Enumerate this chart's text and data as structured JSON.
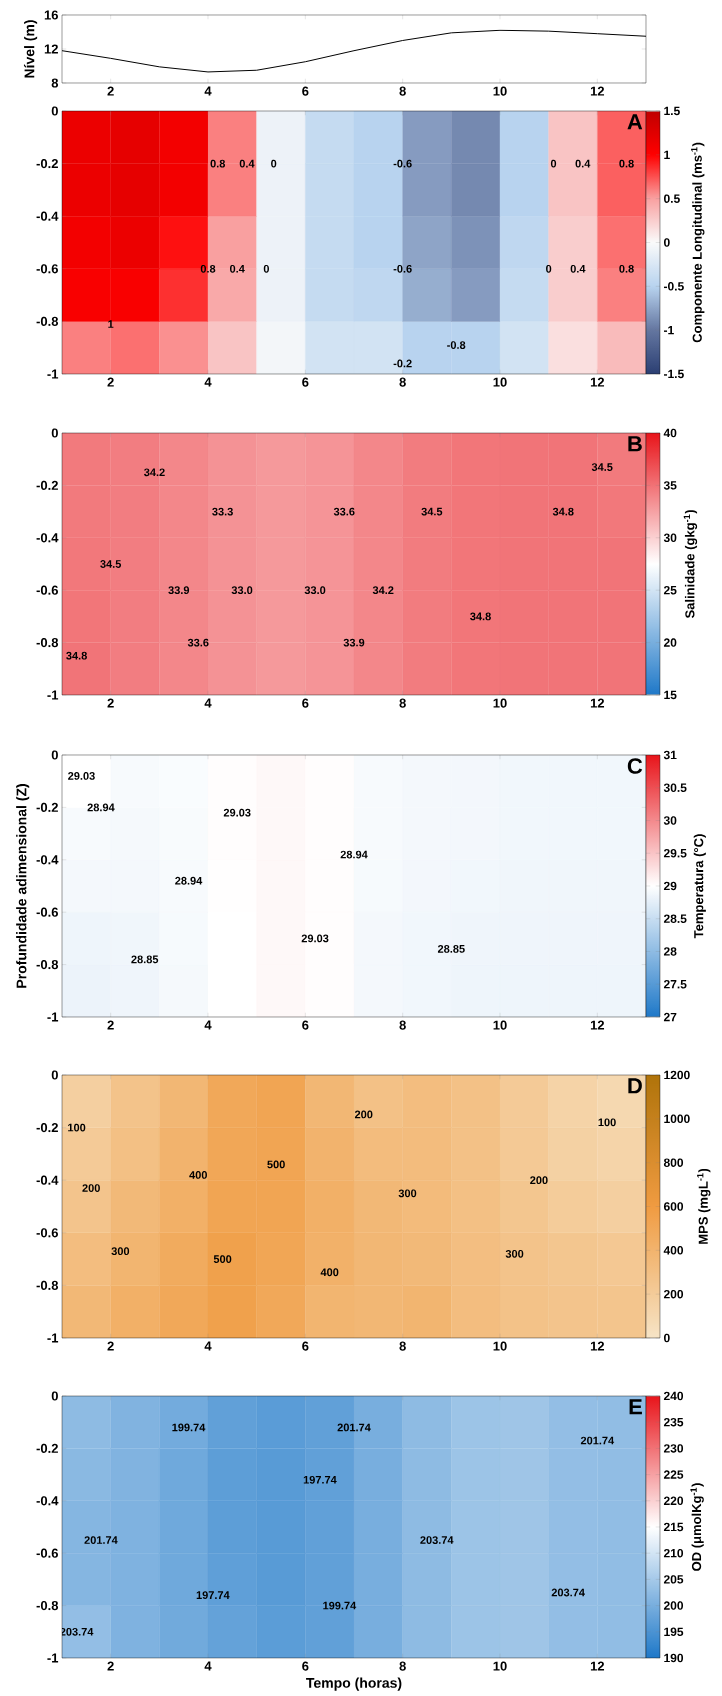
{
  "chart_data": [
    {
      "type": "line",
      "ylabel": "Nível (m)",
      "color": "#000000",
      "x": [
        1,
        2,
        3,
        4,
        5,
        6,
        7,
        8,
        9,
        10,
        11,
        12,
        13
      ],
      "values": [
        11.8,
        10.9,
        9.9,
        9.3,
        9.5,
        10.5,
        11.8,
        13.0,
        13.9,
        14.2,
        14.1,
        13.8,
        13.5
      ],
      "xlim": [
        1,
        13
      ],
      "ylim": [
        8,
        16
      ],
      "xticks": [
        2,
        4,
        6,
        8,
        10,
        12
      ],
      "yticks": [
        8,
        12,
        16
      ]
    },
    {
      "type": "heatmap",
      "title": "A",
      "clabel": "Componente Longitudinal (ms$^{-1}$)",
      "x": [
        1.5,
        2.5,
        3.5,
        4.5,
        5.5,
        6.5,
        7.5,
        8.5,
        9.5,
        10.5,
        11.5,
        12.5
      ],
      "xlim": [
        1,
        13
      ],
      "ylim": [
        -1,
        0
      ],
      "xticks": [
        2,
        4,
        6,
        8,
        10,
        12
      ],
      "yticks": [
        -1,
        -0.8,
        -0.6,
        -0.4,
        -0.2,
        0
      ],
      "clim": [
        -1.5,
        1.5
      ],
      "cticks": [
        -1.5,
        -1,
        -0.5,
        0,
        0.5,
        1,
        1.5
      ],
      "cells": [
        [
          1.15,
          1.2,
          1.1,
          0.6,
          -0.1,
          -0.4,
          -0.5,
          -0.8,
          -0.9,
          -0.5,
          0.3,
          0.7
        ],
        [
          1.15,
          1.2,
          1.1,
          0.6,
          -0.1,
          -0.4,
          -0.5,
          -0.8,
          -0.9,
          -0.5,
          0.3,
          0.7
        ],
        [
          1.1,
          1.15,
          0.95,
          0.5,
          -0.1,
          -0.4,
          -0.5,
          -0.75,
          -0.85,
          -0.45,
          0.25,
          0.65
        ],
        [
          1.05,
          1.05,
          0.85,
          0.45,
          -0.1,
          -0.4,
          -0.45,
          -0.7,
          -0.8,
          -0.4,
          0.25,
          0.6
        ],
        [
          0.6,
          0.65,
          0.55,
          0.3,
          -0.05,
          -0.3,
          -0.3,
          -0.5,
          -0.5,
          -0.3,
          0.15,
          0.35
        ]
      ],
      "annotations": [
        "0.8",
        "0.4",
        "0",
        "-0.6",
        "0",
        "0.4",
        "0.8",
        "0.8",
        "0.4",
        "0",
        "-0.6",
        "0",
        "0.4",
        "0.8",
        "1",
        "-0.8",
        "-0.2"
      ]
    },
    {
      "type": "heatmap",
      "title": "B",
      "clabel": "Salinidade (gkg$^{-1}$)",
      "x": [
        1.5,
        2.5,
        3.5,
        4.5,
        5.5,
        6.5,
        7.5,
        8.5,
        9.5,
        10.5,
        11.5,
        12.5
      ],
      "xlim": [
        1,
        13
      ],
      "ylim": [
        -1,
        0
      ],
      "xticks": [
        2,
        4,
        6,
        8,
        10,
        12
      ],
      "yticks": [
        -1,
        -0.8,
        -0.6,
        -0.4,
        -0.2,
        0
      ],
      "clim": [
        15,
        40
      ],
      "cticks": [
        15,
        20,
        25,
        30,
        35,
        40
      ],
      "cells": [
        [
          34.6,
          34.4,
          33.9,
          33.3,
          32.95,
          33.2,
          33.9,
          34.5,
          34.8,
          34.9,
          34.9,
          34.6
        ],
        [
          34.6,
          34.4,
          33.9,
          33.3,
          32.95,
          33.2,
          33.9,
          34.5,
          34.8,
          34.9,
          34.9,
          34.7
        ],
        [
          34.7,
          34.4,
          33.9,
          33.3,
          32.95,
          33.2,
          33.9,
          34.5,
          34.8,
          34.9,
          34.9,
          34.9
        ],
        [
          34.8,
          34.4,
          33.9,
          33.3,
          32.95,
          33.2,
          33.9,
          34.5,
          34.8,
          34.9,
          34.9,
          34.9
        ],
        [
          34.9,
          34.4,
          33.9,
          33.3,
          32.95,
          33.2,
          33.9,
          34.5,
          34.8,
          34.9,
          34.9,
          34.9
        ]
      ],
      "annotations": [
        "34.2",
        "33.3",
        "33.6",
        "34.5",
        "34.8",
        "34.5",
        "34.5",
        "33.9",
        "33.0",
        "33.0",
        "34.2",
        "34.8",
        "34.8",
        "33.6",
        "33.9"
      ]
    },
    {
      "type": "heatmap",
      "title": "C",
      "ylabel": "Profundidade adimensional (Z)",
      "clabel": "Temperatura (°C)",
      "x": [
        1.5,
        2.5,
        3.5,
        4.5,
        5.5,
        6.5,
        7.5,
        8.5,
        9.5,
        10.5,
        11.5,
        12.5
      ],
      "xlim": [
        1,
        13
      ],
      "ylim": [
        -1,
        0
      ],
      "xticks": [
        2,
        4,
        6,
        8,
        10,
        12
      ],
      "yticks": [
        -1,
        -0.8,
        -0.6,
        -0.4,
        -0.2,
        0
      ],
      "clim": [
        27,
        31
      ],
      "cticks": [
        27,
        27.5,
        28,
        28.5,
        29,
        29.5,
        30,
        30.5,
        31
      ],
      "cells": [
        [
          29.0,
          28.93,
          28.95,
          29.02,
          29.06,
          29.02,
          28.93,
          28.9,
          28.89,
          28.88,
          28.88,
          28.88
        ],
        [
          28.93,
          28.91,
          28.94,
          29.02,
          29.06,
          29.02,
          28.93,
          28.9,
          28.89,
          28.88,
          28.88,
          28.88
        ],
        [
          28.9,
          28.9,
          28.93,
          29.01,
          29.06,
          29.02,
          28.92,
          28.89,
          28.88,
          28.87,
          28.87,
          28.87
        ],
        [
          28.85,
          28.87,
          28.92,
          29.0,
          29.06,
          29.02,
          28.9,
          28.88,
          28.86,
          28.86,
          28.86,
          28.86
        ],
        [
          28.83,
          28.86,
          28.91,
          29.0,
          29.06,
          29.02,
          28.9,
          28.88,
          28.85,
          28.85,
          28.85,
          28.85
        ]
      ],
      "annotations": [
        "29.03",
        "28.94",
        "29.03",
        "28.94",
        "28.94",
        "29.03",
        "28.85",
        "28.85"
      ]
    },
    {
      "type": "heatmap",
      "title": "D",
      "clabel": "MPS (mgL$^{-1}$)",
      "x": [
        1.5,
        2.5,
        3.5,
        4.5,
        5.5,
        6.5,
        7.5,
        8.5,
        9.5,
        10.5,
        11.5,
        12.5
      ],
      "xlim": [
        1,
        13
      ],
      "ylim": [
        -1,
        0
      ],
      "xticks": [
        2,
        4,
        6,
        8,
        10,
        12
      ],
      "yticks": [
        -1,
        -0.8,
        -0.6,
        -0.4,
        -0.2,
        0
      ],
      "clim": [
        0,
        1200
      ],
      "cticks": [
        0,
        200,
        400,
        600,
        800,
        1000,
        1200
      ],
      "cells": [
        [
          170,
          270,
          370,
          490,
          520,
          370,
          290,
          320,
          290,
          210,
          140,
          100
        ],
        [
          210,
          300,
          400,
          500,
          520,
          400,
          330,
          330,
          290,
          220,
          160,
          130
        ],
        [
          260,
          350,
          430,
          520,
          520,
          430,
          360,
          340,
          300,
          250,
          200,
          170
        ],
        [
          320,
          390,
          470,
          550,
          510,
          420,
          370,
          350,
          310,
          270,
          250,
          230
        ],
        [
          360,
          430,
          490,
          550,
          490,
          390,
          370,
          390,
          320,
          280,
          260,
          255
        ]
      ],
      "annotations": [
        "200",
        "100",
        "100",
        "400",
        "500",
        "300",
        "200",
        "200",
        "300",
        "500",
        "400",
        "300"
      ]
    },
    {
      "type": "heatmap",
      "title": "E",
      "xlabel": "Tempo (horas)",
      "clabel": "OD (μmolKg$^{-1}$)",
      "x": [
        1.5,
        2.5,
        3.5,
        4.5,
        5.5,
        6.5,
        7.5,
        8.5,
        9.5,
        10.5,
        11.5,
        12.5
      ],
      "xlim": [
        1,
        13
      ],
      "ylim": [
        -1,
        0
      ],
      "xticks": [
        2,
        4,
        6,
        8,
        10,
        12
      ],
      "yticks": [
        -1,
        -0.8,
        -0.6,
        -0.4,
        -0.2,
        0
      ],
      "clim": [
        190,
        240
      ],
      "cticks": [
        190,
        195,
        200,
        205,
        210,
        215,
        220,
        225,
        230,
        235,
        240
      ],
      "cells": [
        [
          202.5,
          201,
          199.5,
          197.5,
          196.7,
          197.5,
          200,
          202.5,
          204,
          204.3,
          203,
          202.8
        ],
        [
          202,
          201,
          199,
          197,
          196.5,
          197.5,
          200,
          202.5,
          204,
          204.3,
          203,
          202.8
        ],
        [
          201.5,
          200.8,
          199,
          197,
          196.5,
          197.5,
          200,
          202.5,
          204,
          204.3,
          203,
          202.8
        ],
        [
          201.5,
          200.8,
          199,
          197.2,
          196.5,
          197.5,
          200,
          202.5,
          204,
          204.3,
          203,
          202.8
        ],
        [
          203,
          200.8,
          199.2,
          197.8,
          196.8,
          197.5,
          200,
          202.5,
          204,
          204.3,
          203,
          202.8
        ]
      ],
      "annotations": [
        "199.74",
        "201.74",
        "201.74",
        "197.74",
        "201.74",
        "203.74",
        "197.74",
        "199.74",
        "203.74",
        "203.74"
      ]
    }
  ]
}
